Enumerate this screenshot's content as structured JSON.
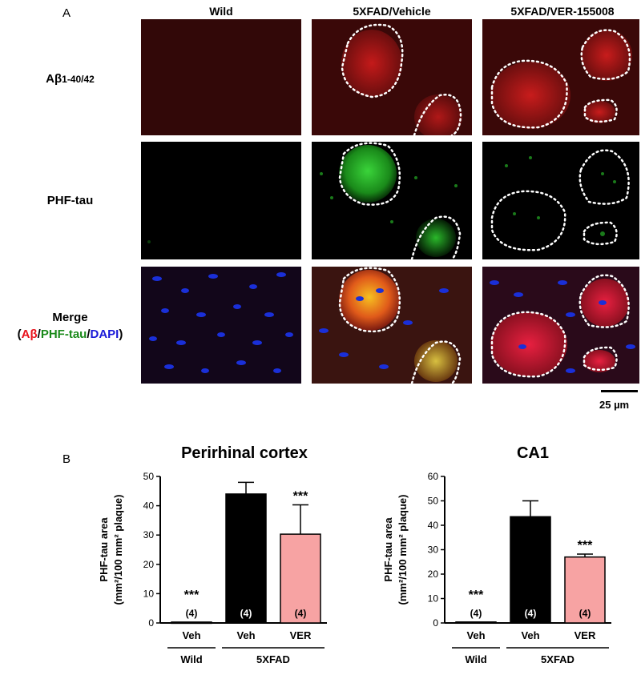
{
  "panelA": {
    "letter": "A",
    "columns": [
      "Wild",
      "5XFAD/Vehicle",
      "5XFAD/VER-155008"
    ],
    "rows": {
      "abeta": {
        "main": "Aβ",
        "sub": "1-40/42"
      },
      "phftau": "PHF-tau",
      "merge": {
        "title": "Merge",
        "open": "(",
        "abeta": "Aβ",
        "slash1": "/",
        "phftau": "PHF-tau",
        "slash2": "/",
        "dapi": "DAPI",
        "close": ")"
      }
    },
    "scale_bar_label": "25 µm",
    "colors": {
      "abeta": "#e8121c",
      "phftau": "#1a8a1a",
      "dapi": "#1a1ad8"
    }
  },
  "panelB": {
    "letter": "B"
  },
  "chart_data": [
    {
      "type": "bar",
      "title": "Perirhinal cortex",
      "ylabel_line1": "PHF-tau area",
      "ylabel_line2": "(mm²/100 mm² plaque)",
      "ylim": [
        0,
        50
      ],
      "yticks": [
        0,
        10,
        20,
        30,
        40,
        50
      ],
      "categories": [
        "Veh",
        "Veh",
        "VER"
      ],
      "groups": [
        {
          "label": "Wild",
          "from": 0,
          "to": 0
        },
        {
          "label": "5XFAD",
          "from": 1,
          "to": 2
        }
      ],
      "values": [
        0.3,
        44,
        30.3
      ],
      "errors": [
        0,
        4,
        10
      ],
      "n_labels": [
        "(4)",
        "(4)",
        "(4)"
      ],
      "significance": [
        "***",
        "",
        "***"
      ],
      "colors": [
        "#000000",
        "#000000",
        "#f7a3a3"
      ]
    },
    {
      "type": "bar",
      "title": "CA1",
      "ylabel_line1": "PHF-tau area",
      "ylabel_line2": "(mm²/100 mm² plaque)",
      "ylim": [
        0,
        60
      ],
      "yticks": [
        0,
        10,
        20,
        30,
        40,
        50,
        60
      ],
      "categories": [
        "Veh",
        "Veh",
        "VER"
      ],
      "groups": [
        {
          "label": "Wild",
          "from": 0,
          "to": 0
        },
        {
          "label": "5XFAD",
          "from": 1,
          "to": 2
        }
      ],
      "values": [
        0.4,
        43.5,
        27
      ],
      "errors": [
        0,
        6.5,
        1.2
      ],
      "n_labels": [
        "(4)",
        "(4)",
        "(4)"
      ],
      "significance": [
        "***",
        "",
        "***"
      ],
      "colors": [
        "#000000",
        "#000000",
        "#f7a3a3"
      ]
    }
  ]
}
